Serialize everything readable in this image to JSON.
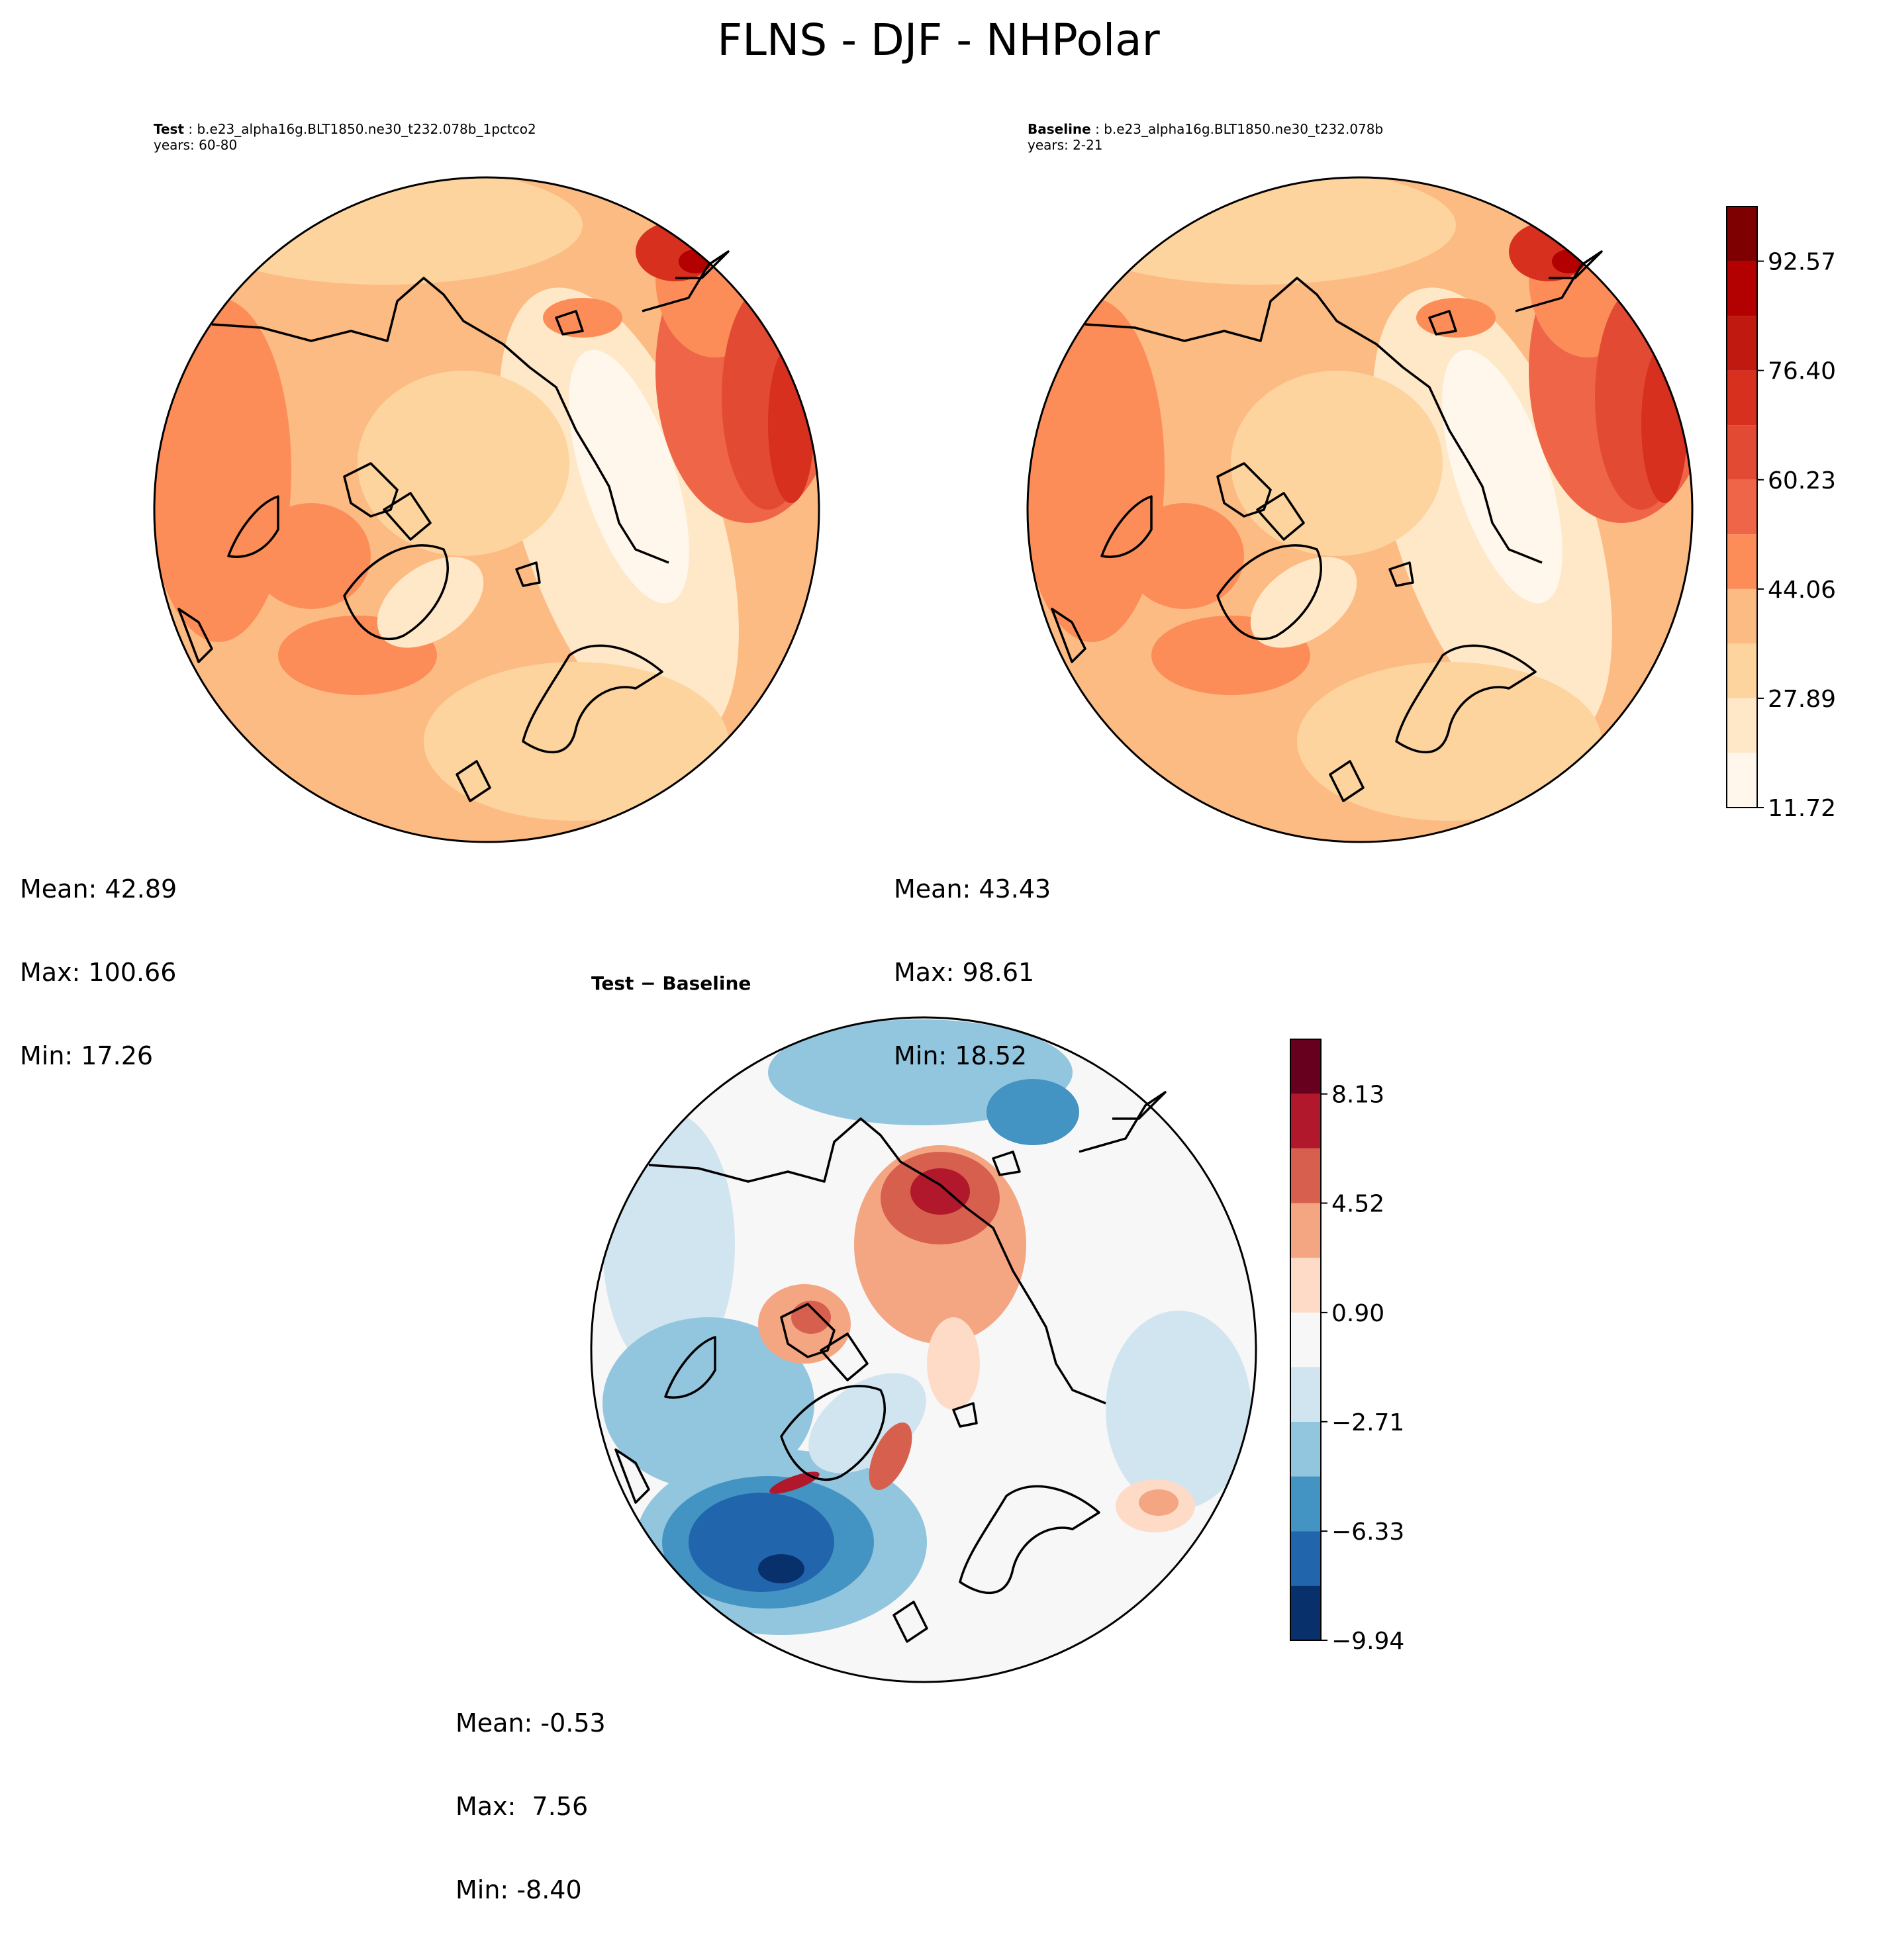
{
  "figure": {
    "title": "FLNS - DJF - NHPolar"
  },
  "panels": {
    "test": {
      "label": "Test",
      "case": "b.e23_alpha16g.BLT1850.ne30_t232.078b_1pctco2",
      "years": "years: 60-80",
      "mean": "Mean: 42.89",
      "max": "Max: 100.66",
      "min": "Min: 17.26"
    },
    "baseline": {
      "label": "Baseline",
      "case": "b.e23_alpha16g.BLT1850.ne30_t232.078b",
      "years": "years: 2-21",
      "mean": "Mean: 43.43",
      "max": "Max: 98.61",
      "min": "Min: 18.52"
    },
    "diff": {
      "title": "Test − Baseline",
      "mean": "Mean: -0.53",
      "max": "Max:  7.56",
      "min": "Min: -8.40"
    }
  },
  "chart_data": [
    {
      "type": "heatmap",
      "name": "Test",
      "projection": "north polar stereographic",
      "colormap": "OrRd",
      "colorbar_levels": [
        11.72,
        19.81,
        27.89,
        35.98,
        44.06,
        52.15,
        60.23,
        68.32,
        76.4,
        84.49,
        92.57,
        100.66
      ],
      "stats": {
        "mean": 42.89,
        "max": 100.66,
        "min": 17.26
      }
    },
    {
      "type": "heatmap",
      "name": "Baseline",
      "projection": "north polar stereographic",
      "colormap": "OrRd",
      "colorbar_levels": [
        11.72,
        19.81,
        27.89,
        35.98,
        44.06,
        52.15,
        60.23,
        68.32,
        76.4,
        84.49,
        92.57,
        100.66
      ],
      "colorbar_ticks": [
        "11.72",
        "27.89",
        "44.06",
        "60.23",
        "76.40",
        "92.57"
      ],
      "stats": {
        "mean": 43.43,
        "max": 98.61,
        "min": 18.52
      }
    },
    {
      "type": "heatmap",
      "name": "Test − Baseline",
      "projection": "north polar stereographic",
      "colormap": "RdBu_r",
      "colorbar_levels": [
        -9.94,
        -8.13,
        -6.33,
        -4.52,
        -2.71,
        -0.9,
        0.9,
        2.71,
        4.52,
        6.33,
        8.13,
        9.94
      ],
      "colorbar_ticks": [
        "−9.94",
        "−6.33",
        "−2.71",
        "0.90",
        "4.52",
        "8.13"
      ],
      "stats": {
        "mean": -0.53,
        "max": 7.56,
        "min": -8.4
      }
    }
  ],
  "colors": {
    "seq": [
      "#fff7ec",
      "#fee8c8",
      "#fdd49e",
      "#fdbb84",
      "#fc8d59",
      "#ef6548",
      "#e34a33",
      "#d7301f",
      "#c01a10",
      "#b30000",
      "#7f0000"
    ],
    "div": [
      "#08306b",
      "#2166ac",
      "#4393c3",
      "#92c5de",
      "#d1e5f0",
      "#f7f7f7",
      "#fddbc7",
      "#f4a582",
      "#d6604d",
      "#b2182b",
      "#67001f"
    ]
  }
}
